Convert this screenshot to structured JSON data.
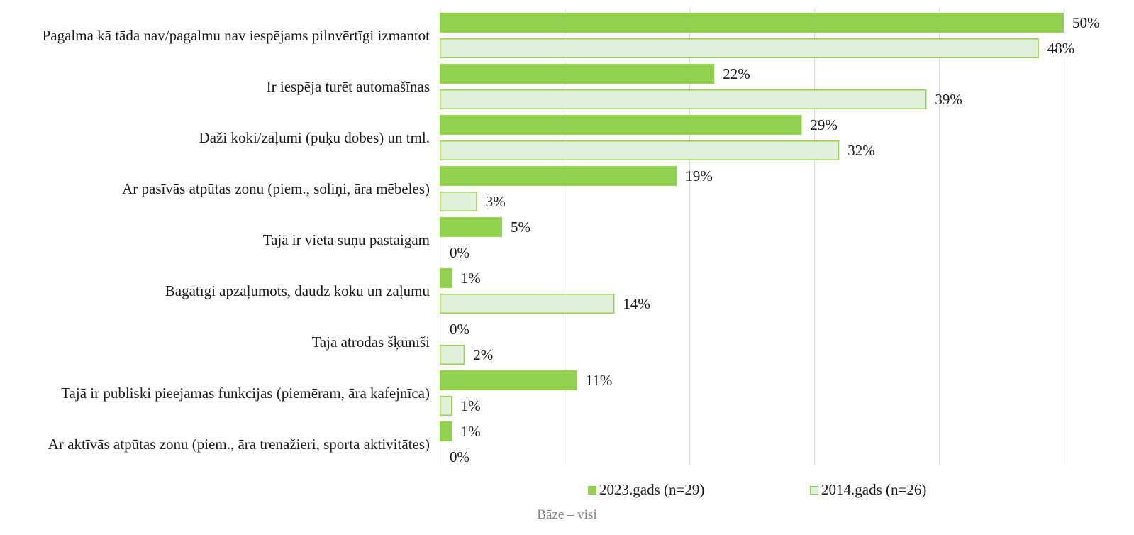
{
  "chart_data": {
    "type": "bar",
    "orientation": "horizontal",
    "categories": [
      "Pagalma kā tāda nav/pagalmu nav iespējams pilnvērtīgi izmantot",
      "Ir iespēja turēt automašīnas",
      "Daži koki/zaļumi (puķu dobes) un tml.",
      "Ar pasīvās atpūtas zonu (piem., soliņi, āra mēbeles)",
      "Tajā ir vieta suņu pastaigām",
      "Bagātīgi apzaļumots, daudz koku un zaļumu",
      "Tajā atrodas šķūnīši",
      "Tajā ir publiski pieejamas funkcijas (piemēram, āra kafejnīca)",
      "Ar aktīvās atpūtas zonu (piem., āra trenažieri, sporta aktivitātes)"
    ],
    "series": [
      {
        "name": "2023.gads (n=29)",
        "values": [
          50,
          22,
          29,
          19,
          5,
          1,
          0,
          11,
          1
        ],
        "color": "#92d050",
        "style": "filled"
      },
      {
        "name": "2014.gads (n=26)",
        "values": [
          48,
          39,
          32,
          3,
          0,
          14,
          2,
          1,
          0
        ],
        "color": "#e2efda",
        "border_color": "#92d050",
        "style": "outlined"
      }
    ],
    "value_suffix": "%",
    "xlim": [
      0,
      50
    ],
    "x_gridlines": [
      0,
      10,
      20,
      30,
      40,
      50
    ],
    "grid": true,
    "legend_position": "bottom",
    "footnote": "Bāze – visi"
  }
}
